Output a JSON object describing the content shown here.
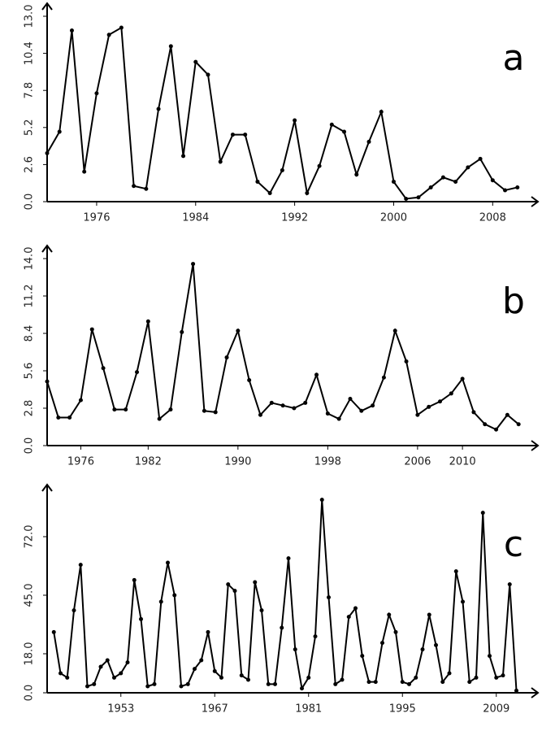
{
  "chart_data": [
    {
      "type": "line",
      "title": "a",
      "color": "#000000",
      "x": [
        1972,
        1973,
        1974,
        1975,
        1976,
        1977,
        1978,
        1979,
        1980,
        1981,
        1982,
        1983,
        1984,
        1985,
        1986,
        1987,
        1988,
        1989,
        1990,
        1991,
        1992,
        1993,
        1994,
        1995,
        1996,
        1997,
        1998,
        1999,
        2000,
        2001,
        2002,
        2003,
        2004,
        2005,
        2006,
        2007,
        2008,
        2009,
        2010
      ],
      "values": [
        3.4,
        4.9,
        12.0,
        2.1,
        7.6,
        11.7,
        12.2,
        1.1,
        0.9,
        6.5,
        10.9,
        3.2,
        9.8,
        8.9,
        2.8,
        4.7,
        4.7,
        1.4,
        0.6,
        2.2,
        5.7,
        0.6,
        2.5,
        5.4,
        4.9,
        1.9,
        4.2,
        6.3,
        1.4,
        0.2,
        0.3,
        1.0,
        1.7,
        1.4,
        2.4,
        3.0,
        1.5,
        0.8,
        1.0
      ],
      "xlim": [
        1972,
        2011
      ],
      "xticks": [
        1976,
        1984,
        1992,
        2000,
        2008
      ],
      "ylim": [
        0,
        13
      ],
      "yticks": [
        {
          "value": 0,
          "label": "0.0"
        },
        2.6,
        5.2,
        7.8,
        10.4,
        {
          "value": 13,
          "label": "13.0"
        }
      ]
    },
    {
      "type": "line",
      "title": "b",
      "color": "#000000",
      "x": [
        1973,
        1974,
        1975,
        1976,
        1977,
        1978,
        1979,
        1980,
        1981,
        1982,
        1983,
        1984,
        1985,
        1986,
        1987,
        1988,
        1989,
        1990,
        1991,
        1992,
        1993,
        1994,
        1995,
        1996,
        1997,
        1998,
        1999,
        2000,
        2001,
        2002,
        2003,
        2004,
        2005,
        2006,
        2007,
        2008,
        2009,
        2010,
        2011,
        2012,
        2013,
        2014,
        2015
      ],
      "values": [
        4.8,
        2.1,
        2.1,
        3.4,
        8.7,
        5.8,
        2.7,
        2.7,
        5.5,
        9.3,
        2.0,
        2.7,
        8.5,
        13.6,
        2.6,
        2.5,
        6.6,
        8.6,
        4.9,
        2.3,
        3.2,
        3.0,
        2.8,
        3.2,
        5.3,
        2.4,
        2.0,
        3.5,
        2.6,
        3.0,
        5.1,
        8.6,
        6.3,
        2.3,
        2.9,
        3.3,
        3.9,
        5.0,
        2.5,
        1.6,
        1.2,
        2.3,
        1.6
      ],
      "xlim": [
        1973,
        2016
      ],
      "xticks": [
        1976,
        1982,
        1990,
        1998,
        2006,
        2010
      ],
      "ylim": [
        0,
        14
      ],
      "yticks": [
        {
          "value": 0,
          "label": "0.0"
        },
        2.8,
        5.6,
        8.4,
        11.2,
        {
          "value": 14,
          "label": "14.0"
        }
      ]
    },
    {
      "type": "line",
      "title": "c",
      "color": "#000000",
      "x": [
        1943,
        1944,
        1945,
        1946,
        1947,
        1948,
        1949,
        1950,
        1951,
        1952,
        1953,
        1954,
        1955,
        1956,
        1957,
        1958,
        1959,
        1960,
        1961,
        1962,
        1963,
        1964,
        1965,
        1966,
        1967,
        1968,
        1969,
        1970,
        1971,
        1972,
        1973,
        1974,
        1975,
        1976,
        1977,
        1978,
        1979,
        1980,
        1981,
        1982,
        1983,
        1984,
        1985,
        1986,
        1987,
        1988,
        1989,
        1990,
        1991,
        1992,
        1993,
        1994,
        1995,
        1996,
        1997,
        1998,
        1999,
        2000,
        2001,
        2002,
        2003,
        2004,
        2005,
        2006,
        2007,
        2008,
        2009,
        2010,
        2011,
        2012
      ],
      "values": [
        28,
        9,
        7,
        38,
        59,
        3,
        4,
        12,
        15,
        7,
        9,
        14,
        52,
        34,
        3,
        4,
        42,
        60,
        45,
        3,
        4,
        11,
        15,
        28,
        10,
        7,
        50,
        47,
        8,
        6,
        51,
        38,
        4,
        4,
        30,
        62,
        20,
        2,
        7,
        26,
        89,
        44,
        4,
        6,
        35,
        39,
        17,
        5,
        5,
        23,
        36,
        28,
        5,
        4,
        7,
        20,
        36,
        22,
        5,
        9,
        56,
        42,
        5,
        7,
        83,
        17,
        7,
        8,
        50,
        1
      ],
      "xlim": [
        1942,
        2014
      ],
      "xticks": [
        1953,
        1967,
        1981,
        1995,
        2009
      ],
      "ylim": [
        0,
        90
      ],
      "yticks": [
        {
          "value": 0,
          "label": "0.0"
        },
        {
          "value": 18,
          "label": "18.0"
        },
        {
          "value": 45,
          "label": "45.0"
        },
        {
          "value": 72,
          "label": "72.0"
        }
      ]
    }
  ]
}
